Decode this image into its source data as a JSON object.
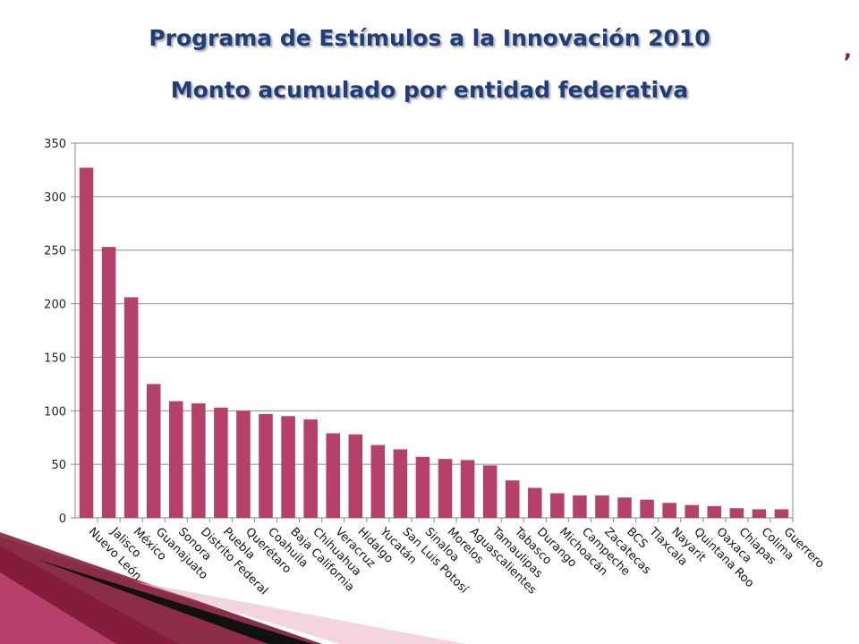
{
  "chart_data": {
    "type": "bar",
    "title": "Programa de Estímulos a la Innovación 2010",
    "subtitle": "Monto acumulado por entidad federativa",
    "xlabel": "",
    "ylabel": "",
    "ylim": [
      0,
      350
    ],
    "yticks": [
      "0",
      "50",
      "100",
      "150",
      "200",
      "250",
      "300",
      "350"
    ],
    "grid": true,
    "bar_color": "#b5406a",
    "categories": [
      "Nuevo León",
      "Jalisco",
      "México",
      "Guanajuato",
      "Sonora",
      "Distrito Federal",
      "Puebla",
      "Querétaro",
      "Coahuila",
      "Baja California",
      "Chihuahua",
      "Veracruz",
      "Hidalgo",
      "Yucatán",
      "San Luis Potosí",
      "Sinaloa",
      "Morelos",
      "Aguascalientes",
      "Tamaulipas",
      "Tabasco",
      "Durango",
      "Michoacán",
      "Campeche",
      "Zacatecas",
      "BCS",
      "Tlaxcala",
      "Nayarit",
      "Quintana Roo",
      "Oaxaca",
      "Chiapas",
      "Colima",
      "Guerrero"
    ],
    "values": [
      327,
      253,
      206,
      125,
      109,
      107,
      103,
      100,
      97,
      95,
      92,
      79,
      78,
      68,
      64,
      57,
      55,
      54,
      49,
      35,
      28,
      23,
      21,
      21,
      19,
      17,
      14,
      12,
      11,
      9,
      8,
      8
    ]
  },
  "decor": {
    "accent": "#8a1f3c",
    "corner_light": "#e6a9bc",
    "corner_dark": "#7a1733"
  }
}
